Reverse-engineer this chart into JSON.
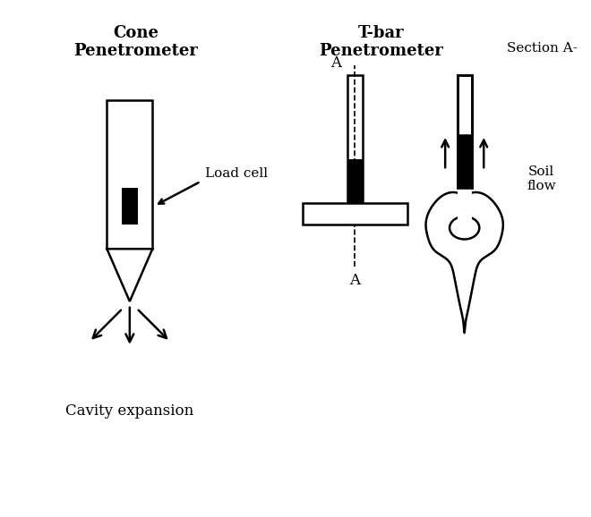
{
  "bg_color": "#ffffff",
  "title_left": "Cone\nPenetrometer",
  "title_right": "T-bar\nPenetrometer",
  "label_load_cell": "Load cell",
  "label_cavity": "Cavity expansion",
  "label_section": "Section A-",
  "label_soil": "Soil\nflow",
  "label_A_top": "A",
  "label_A_bot": "A",
  "line_color": "#000000",
  "fill_black": "#000000",
  "fill_white": "#ffffff",
  "figw": 6.6,
  "figh": 5.78,
  "dpi": 100
}
